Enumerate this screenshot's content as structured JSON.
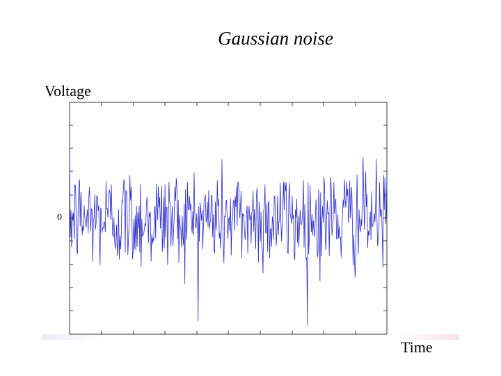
{
  "chart_data": {
    "type": "line",
    "title": "Gaussian noise",
    "xlabel": "Time",
    "ylabel": "Voltage",
    "ytick_labels": [
      "0"
    ],
    "ylim": [
      -1,
      1
    ],
    "grid": false,
    "legend": "none",
    "series_color": "#2a2acc",
    "n_points": 480,
    "seed": 12345,
    "std": 0.22
  }
}
